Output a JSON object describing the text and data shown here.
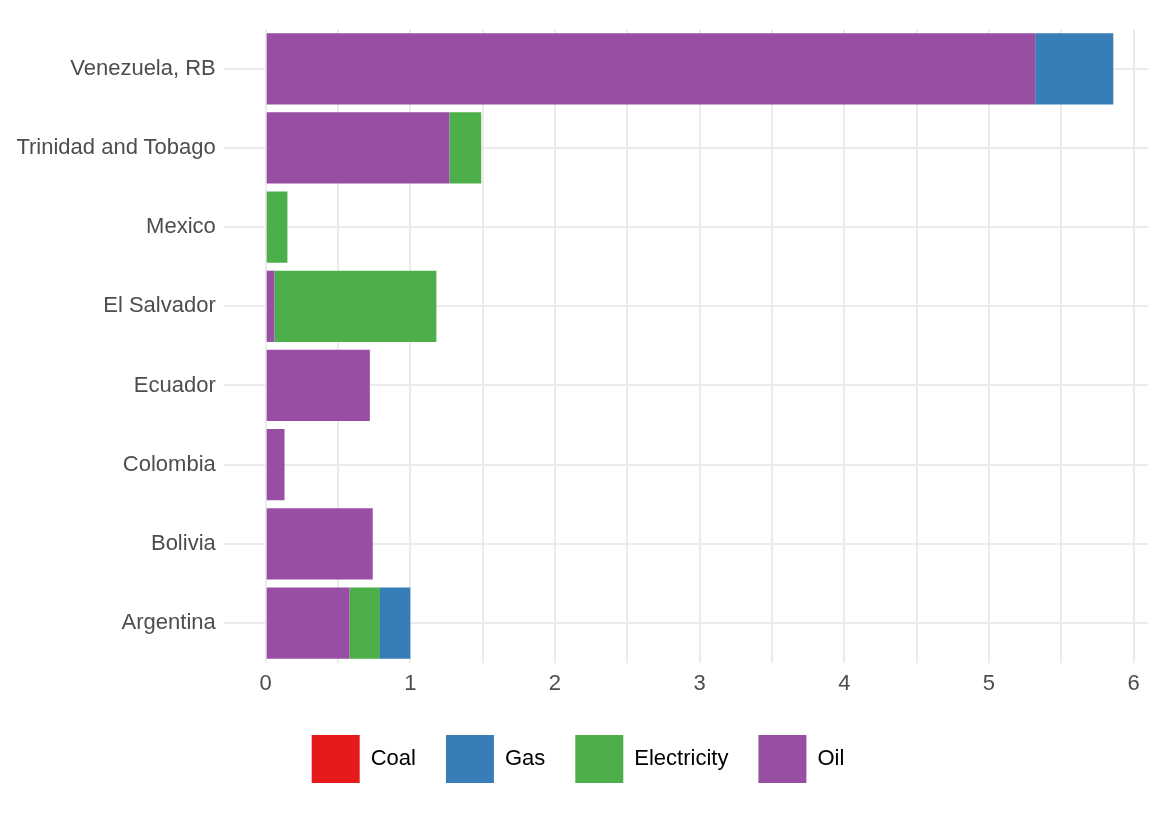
{
  "chart_data": {
    "type": "bar",
    "orientation": "horizontal",
    "stacked": true,
    "categories": [
      "Venezuela, RB",
      "Trinidad and Tobago",
      "Mexico",
      "El Salvador",
      "Ecuador",
      "Colombia",
      "Bolivia",
      "Argentina"
    ],
    "series": [
      {
        "name": "Oil",
        "color": "#984ea3",
        "values": [
          5.32,
          1.27,
          0,
          0.06,
          0.72,
          0.13,
          0.74,
          0.58
        ]
      },
      {
        "name": "Electricity",
        "color": "#4daf4a",
        "values": [
          0,
          0.22,
          0.15,
          1.12,
          0,
          0,
          0,
          0.21
        ]
      },
      {
        "name": "Gas",
        "color": "#377eb8",
        "values": [
          0.54,
          0,
          0,
          0,
          0,
          0,
          0,
          0.21
        ]
      },
      {
        "name": "Coal",
        "color": "#e41a1c",
        "values": [
          0,
          0,
          0,
          0,
          0,
          0,
          0,
          0
        ]
      }
    ],
    "xlim": [
      -0.29,
      6.1
    ],
    "xticks": [
      0,
      {
        "value": 0.5,
        "label": null
      },
      1,
      {
        "value": 1.5,
        "label": null
      },
      2,
      {
        "value": 2.5,
        "label": null
      },
      3,
      {
        "value": 3.5,
        "label": null
      },
      4,
      {
        "value": 4.5,
        "label": null
      },
      5,
      {
        "value": 5.5,
        "label": null
      },
      6
    ],
    "grid": true,
    "legend": "bottom"
  }
}
